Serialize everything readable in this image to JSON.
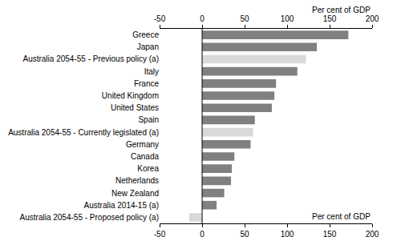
{
  "chart_data": {
    "type": "bar",
    "orientation": "horizontal",
    "xlabel": "Per cent of GDP",
    "categories": [
      "Greece",
      "Japan",
      "Australia 2054-55 - Previous policy (a)",
      "Italy",
      "France",
      "United Kingdom",
      "United States",
      "Spain",
      "Australia 2054-55 - Currently legislated (a)",
      "Germany",
      "Canada",
      "Korea",
      "Netherlands",
      "New Zealand",
      "Australia 2014-15 (a)",
      "Australia 2054-55 - Proposed policy (a)"
    ],
    "values": [
      172,
      135,
      122,
      112,
      87,
      85,
      82,
      62,
      60,
      57,
      38,
      35,
      34,
      26,
      17,
      -15
    ],
    "colors": [
      "#808080",
      "#808080",
      "#d9d9d9",
      "#808080",
      "#808080",
      "#808080",
      "#808080",
      "#808080",
      "#d9d9d9",
      "#808080",
      "#808080",
      "#808080",
      "#808080",
      "#808080",
      "#808080",
      "#d9d9d9"
    ],
    "xlim": [
      -50,
      200
    ],
    "xticks": [
      -50,
      0,
      50,
      100,
      150,
      200
    ],
    "grid": false
  }
}
